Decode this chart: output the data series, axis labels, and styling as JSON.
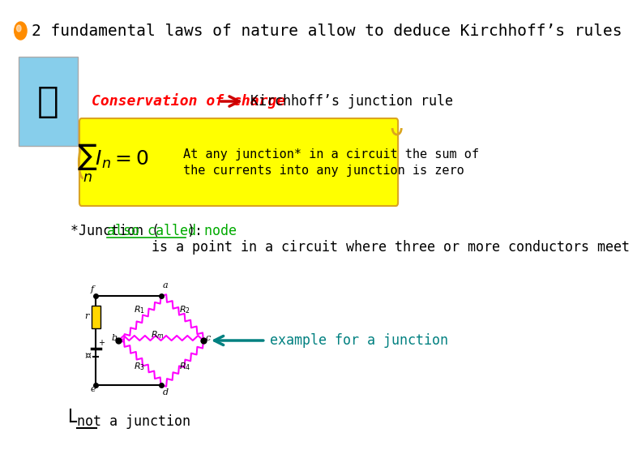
{
  "bg_color": "#ffffff",
  "title_text": "2 fundamental laws of nature allow to deduce Kirchhoff’s rules",
  "title_color": "#000000",
  "title_fontsize": 14,
  "bullet_color": "#FF8C00",
  "conservation_text": "Conservation of charge",
  "conservation_color": "#FF0000",
  "arrow_color": "#CC0000",
  "junction_rule_text": "Kirchhoff’s junction rule",
  "junction_rule_color": "#000000",
  "scroll_bg": "#FFFF00",
  "scroll_border": "#DAA520",
  "formula_text": "$\\sum_n I_n = 0$",
  "formula_color": "#000000",
  "formula_fontsize": 18,
  "at_any_text1": "At any junction* in a circuit the sum of",
  "at_any_text2": "the currents into any junction is zero",
  "at_any_color": "#000000",
  "at_any_fontsize": 11,
  "junction_def_text1": "*Junction (",
  "junction_def_text2": "also called node",
  "junction_def_text3": "):",
  "junction_def_color1": "#000000",
  "junction_def_color2": "#00AA00",
  "junction_def_fontsize": 12,
  "junction_def_text4": "          is a point in a circuit where three or more conductors meet",
  "example_text": "example for a junction",
  "example_color": "#008080",
  "not_junction_text": "not a junction",
  "not_junction_color": "#000000",
  "not_junction_fontsize": 12
}
